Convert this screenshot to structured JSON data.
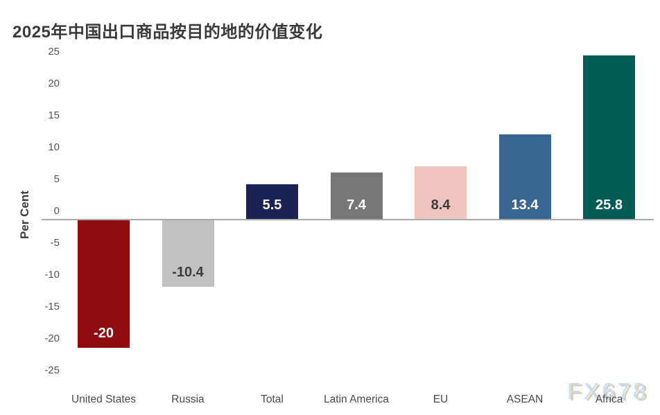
{
  "page": {
    "background": "#ffffff"
  },
  "chart_data": {
    "type": "bar",
    "title": "2025年中国出口商品按目的地的价值变化",
    "xlabel": "",
    "ylabel": "Per Cent",
    "ylim": [
      -25,
      25
    ],
    "yticks": [
      25,
      20,
      15,
      10,
      5,
      0,
      -5,
      -10,
      -15,
      -20,
      -25
    ],
    "grid": false,
    "legend": "none",
    "categories": [
      "United States",
      "Russia",
      "Total",
      "Latin America",
      "EU",
      "ASEAN",
      "Africa"
    ],
    "values": [
      -20,
      -10.4,
      5.5,
      7.4,
      8.4,
      13.4,
      25.8
    ],
    "value_labels": [
      "-20",
      "-10.4",
      "5.5",
      "7.4",
      "8.4",
      "13.4",
      "25.8"
    ],
    "bar_colors": [
      "#8e0c10",
      "#c1c1c1",
      "#1b2150",
      "#767676",
      "#edc4c0",
      "#3a6693",
      "#045d55"
    ],
    "value_label_colors": [
      "#ffffff",
      "#3d3d3d",
      "#ffffff",
      "#ffffff",
      "#3d3d3d",
      "#ffffff",
      "#ffffff"
    ],
    "axis_line_color": "#a8a8a8",
    "tick_label_color": "#555555",
    "category_label_color": "#4a4a4a",
    "title_color": "#3a3a3a"
  },
  "watermark": {
    "text": "FX678",
    "color_front": "#c9ddf3",
    "color_shadow": "#dcc9b3"
  }
}
